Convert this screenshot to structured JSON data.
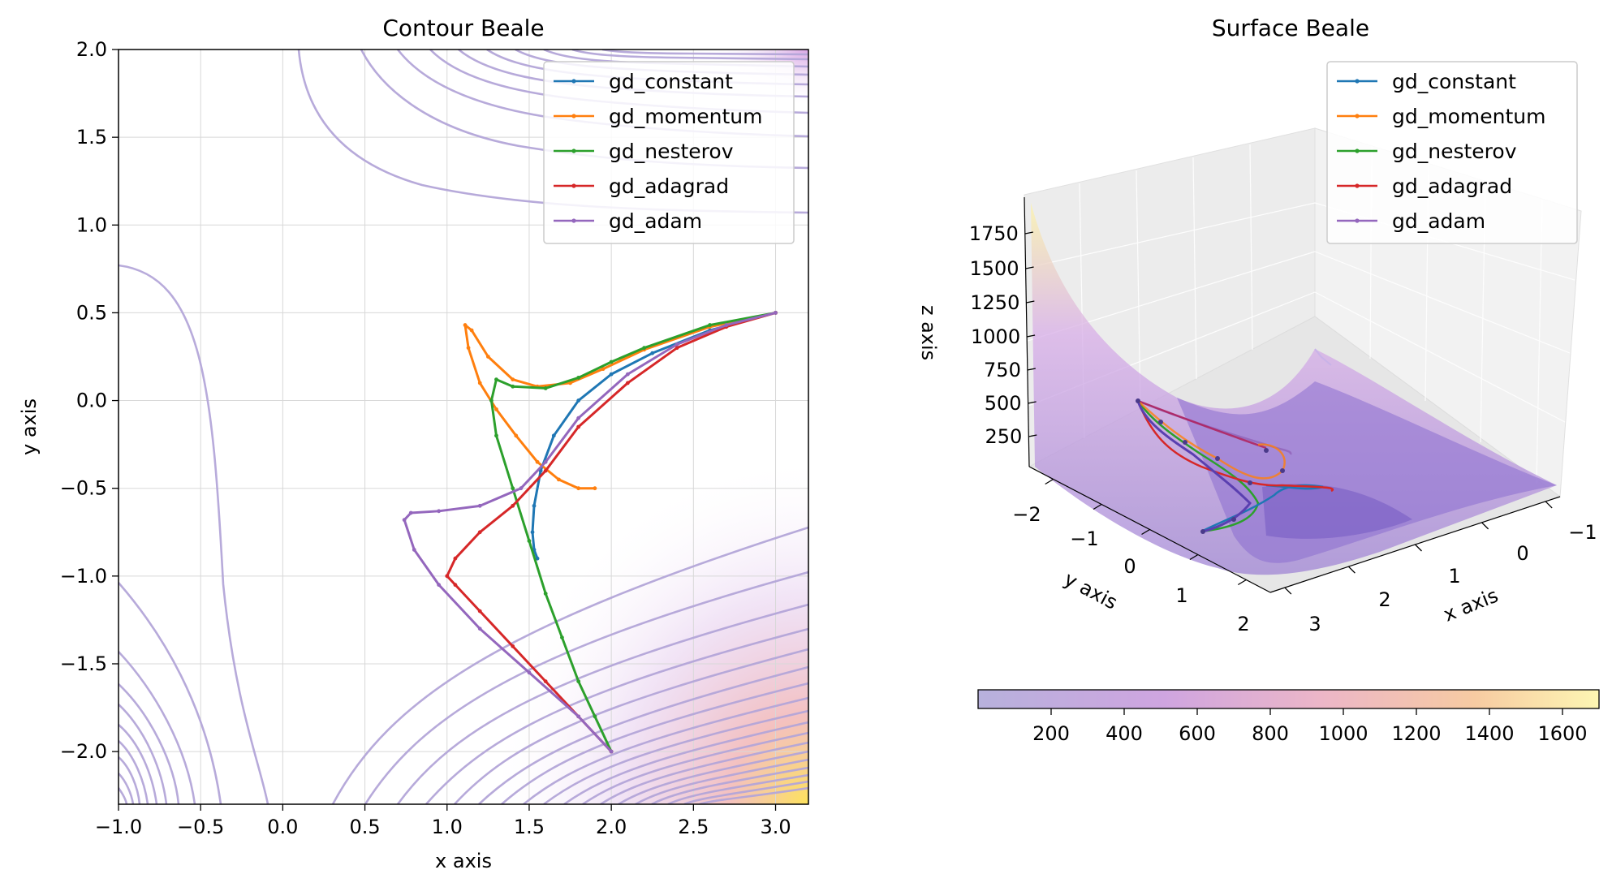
{
  "chart_data": [
    {
      "type": "line",
      "title": "Contour Beale",
      "xlabel": "x axis",
      "ylabel": "y axis",
      "xlim": [
        -1.0,
        3.2
      ],
      "ylim": [
        -2.3,
        2.0
      ],
      "xticks": [
        -1.0,
        -0.5,
        0.0,
        0.5,
        1.0,
        1.5,
        2.0,
        2.5,
        3.0
      ],
      "xtick_labels": [
        "−1.0",
        "−0.5",
        "0.0",
        "0.5",
        "1.0",
        "1.5",
        "2.0",
        "2.5",
        "3.0"
      ],
      "yticks": [
        -2.0,
        -1.5,
        -1.0,
        -0.5,
        0.0,
        0.5,
        1.0,
        1.5,
        2.0
      ],
      "ytick_labels": [
        "−2.0",
        "−1.5",
        "−1.0",
        "−0.5",
        "0.0",
        "0.5",
        "1.0",
        "1.5",
        "2.0"
      ],
      "grid": true,
      "legend_position": "top-right",
      "series": [
        {
          "name": "gd_constant",
          "color": "#1f77b4",
          "x": [
            3.0,
            2.6,
            2.25,
            2.0,
            1.8,
            1.65,
            1.57,
            1.53,
            1.52,
            1.53,
            1.55
          ],
          "y": [
            0.5,
            0.4,
            0.27,
            0.15,
            0.0,
            -0.2,
            -0.4,
            -0.6,
            -0.75,
            -0.85,
            -0.9
          ]
        },
        {
          "name": "gd_momentum",
          "color": "#ff7f0e",
          "x": [
            3.0,
            2.6,
            2.2,
            1.95,
            1.75,
            1.55,
            1.4,
            1.25,
            1.15,
            1.11,
            1.13,
            1.2,
            1.3,
            1.42,
            1.55,
            1.68,
            1.8,
            1.9
          ],
          "y": [
            0.5,
            0.42,
            0.29,
            0.18,
            0.1,
            0.08,
            0.12,
            0.25,
            0.4,
            0.43,
            0.3,
            0.1,
            -0.05,
            -0.2,
            -0.35,
            -0.45,
            -0.5,
            -0.5
          ]
        },
        {
          "name": "gd_nesterov",
          "color": "#2ca02c",
          "x": [
            3.0,
            2.6,
            2.2,
            2.0,
            1.8,
            1.6,
            1.4,
            1.3,
            1.27,
            1.3,
            1.4,
            1.5,
            1.6,
            1.7,
            1.8,
            1.9,
            2.0
          ],
          "y": [
            0.5,
            0.43,
            0.3,
            0.22,
            0.13,
            0.07,
            0.08,
            0.12,
            0.0,
            -0.2,
            -0.5,
            -0.8,
            -1.1,
            -1.35,
            -1.6,
            -1.8,
            -2.0
          ]
        },
        {
          "name": "gd_adagrad",
          "color": "#d62728",
          "x": [
            2.0,
            1.8,
            1.6,
            1.4,
            1.2,
            1.05,
            1.0,
            1.05,
            1.2,
            1.4,
            1.6,
            1.8,
            2.1,
            2.4,
            2.7,
            3.0
          ],
          "y": [
            -2.0,
            -1.8,
            -1.6,
            -1.4,
            -1.2,
            -1.05,
            -1.0,
            -0.9,
            -0.75,
            -0.6,
            -0.4,
            -0.15,
            0.1,
            0.3,
            0.42,
            0.5
          ]
        },
        {
          "name": "gd_adam",
          "color": "#9467bd",
          "x": [
            2.0,
            1.8,
            1.5,
            1.2,
            0.95,
            0.8,
            0.74,
            0.78,
            0.95,
            1.2,
            1.45,
            1.6,
            1.8,
            2.1,
            2.4,
            2.7,
            3.0
          ],
          "y": [
            -2.0,
            -1.8,
            -1.55,
            -1.3,
            -1.05,
            -0.85,
            -0.68,
            -0.64,
            -0.63,
            -0.6,
            -0.5,
            -0.35,
            -0.1,
            0.15,
            0.32,
            0.43,
            0.5
          ]
        }
      ],
      "contour_style": {
        "line_color": "#b4a6d9",
        "cmap_high_color": "#f7d65a"
      }
    },
    {
      "type": "surface",
      "title": "Surface Beale",
      "xlabel": "x axis",
      "ylabel": "y axis",
      "zlabel": "z axis",
      "x_ticks": [
        "−1",
        "0",
        "1",
        "2",
        "3"
      ],
      "y_ticks": [
        "−2",
        "−1",
        "0",
        "1",
        "2"
      ],
      "z_ticks": [
        "250",
        "500",
        "750",
        "1000",
        "1250",
        "1500",
        "1750"
      ],
      "colorbar_ticks": [
        "200",
        "400",
        "600",
        "800",
        "1000",
        "1200",
        "1400",
        "1600"
      ],
      "colorbar_range": [
        0,
        1700
      ],
      "legend_position": "top-right",
      "series_names": [
        "gd_constant",
        "gd_momentum",
        "gd_nesterov",
        "gd_adagrad",
        "gd_adam"
      ],
      "series_colors": [
        "#1f77b4",
        "#ff7f0e",
        "#2ca02c",
        "#d62728",
        "#9467bd"
      ]
    }
  ]
}
